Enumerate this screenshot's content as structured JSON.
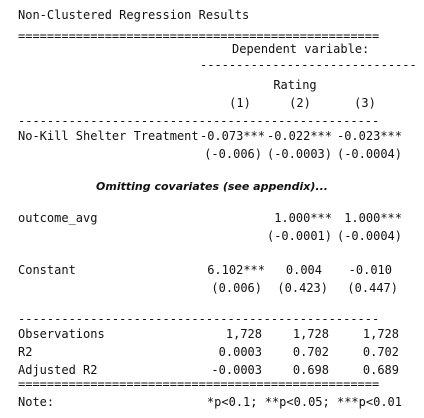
{
  "title": "Non-Clustered Regression Results",
  "rule_double": "==================================================",
  "rule_single": "--------------------------------------------------",
  "header": {
    "dependent_variable": "Dependent variable:",
    "sub_rule": "------------------------------",
    "rating": "Rating",
    "col1": "(1)",
    "col2": "(2)",
    "col3": "(3)"
  },
  "rows": {
    "treatment": {
      "label": "No-Kill Shelter Treatment",
      "c1": "-0.073***",
      "c2": "-0.022***",
      "c3": "-0.023***",
      "se1": "(-0.006)",
      "se2": "(-0.0003)",
      "se3": "(-0.0004)"
    },
    "omitting_note": "Omitting covariates (see appendix)...",
    "outcome_avg": {
      "label": "outcome_avg",
      "c1": "",
      "c2": "1.000***",
      "c3": "1.000***",
      "se1": "",
      "se2": "(-0.0001)",
      "se3": "(-0.0004)"
    },
    "constant": {
      "label": "Constant",
      "c1": "6.102***",
      "c2": "0.004",
      "c3": "-0.010",
      "se1": "(0.006)",
      "se2": "(0.423)",
      "se3": "(0.447)"
    },
    "observations": {
      "label": "Observations",
      "c1": "1,728",
      "c2": "1,728",
      "c3": "1,728"
    },
    "r2": {
      "label": "R2",
      "c1": "0.0003",
      "c2": "0.702",
      "c3": "0.702"
    },
    "adj_r2": {
      "label": "Adjusted R2",
      "c1": "-0.0003",
      "c2": "0.698",
      "c3": "0.689"
    }
  },
  "footer": {
    "note_label": "Note:",
    "significance": "*p<0.1; **p<0.05; ***p<0.01"
  }
}
